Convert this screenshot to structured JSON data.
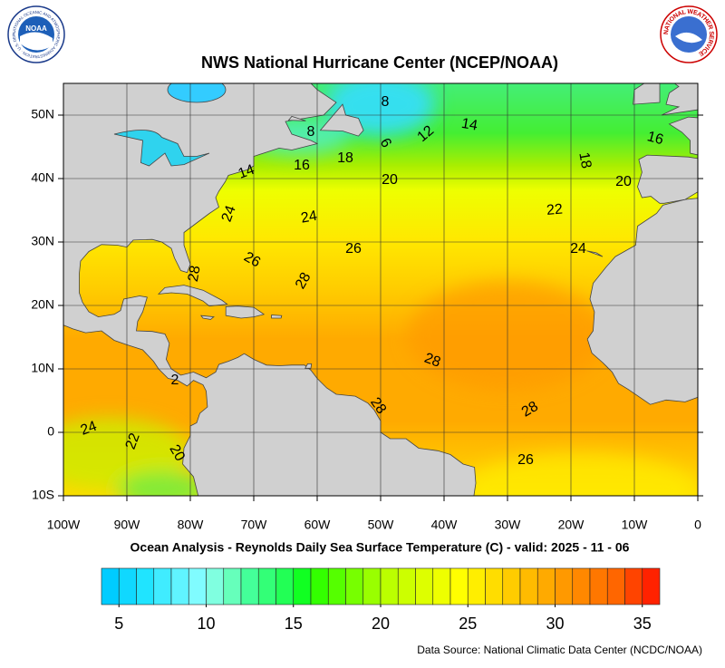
{
  "header": {
    "title": "NWS National Hurricane Center (NCEP/NOAA)"
  },
  "logos": {
    "noaa": "NOAA",
    "noaa_ring": "NATIONAL OCEANIC AND ATMOSPHERIC ADMINISTRATION · U.S. DEPARTMENT OF COMMERCE",
    "nws_ring": "NATIONAL WEATHER SERVICE"
  },
  "map": {
    "xlim": [
      -100,
      0
    ],
    "ylim": [
      -10,
      55
    ],
    "grid": true,
    "xticks": [
      {
        "value": -100,
        "label": "100W"
      },
      {
        "value": -90,
        "label": "90W"
      },
      {
        "value": -80,
        "label": "80W"
      },
      {
        "value": -70,
        "label": "70W"
      },
      {
        "value": -60,
        "label": "60W"
      },
      {
        "value": -50,
        "label": "50W"
      },
      {
        "value": -40,
        "label": "40W"
      },
      {
        "value": -30,
        "label": "30W"
      },
      {
        "value": -20,
        "label": "20W"
      },
      {
        "value": -10,
        "label": "10W"
      },
      0
    ],
    "yticks": [
      {
        "value": 50,
        "label": "50N"
      },
      {
        "value": 40,
        "label": "40N"
      },
      {
        "value": 30,
        "label": "30N"
      },
      {
        "value": 20,
        "label": "20N"
      },
      {
        "value": 10,
        "label": "10N"
      },
      0,
      {
        "value": -10,
        "label": "10S"
      }
    ],
    "contour_labels": [
      "8",
      "8",
      "6",
      "12",
      "14",
      "16",
      "14",
      "16",
      "18",
      "18",
      "20",
      "20",
      "24",
      "24",
      "22",
      "26",
      "24",
      "26",
      "28",
      "28",
      "28",
      "28",
      "28",
      "24",
      "22",
      "20",
      "26",
      "2"
    ]
  },
  "subtitle": "Ocean Analysis - Reynolds Daily Sea Surface Temperature (C) - valid: 2025 - 11 - 06",
  "colorbar": {
    "range": [
      4,
      36
    ],
    "colors": [
      "#00ccff",
      "#10d8ff",
      "#20e4ff",
      "#40ecff",
      "#60f4ff",
      "#80fcff",
      "#80ffe0",
      "#66ffbb",
      "#44ff99",
      "#33ff77",
      "#22ff55",
      "#11ff22",
      "#33ff00",
      "#55ff00",
      "#77ff00",
      "#99ff00",
      "#bbff00",
      "#ccff00",
      "#ddff00",
      "#eeff00",
      "#ffff00",
      "#ffee00",
      "#ffdd00",
      "#ffcc00",
      "#ffbb00",
      "#ffaa00",
      "#ff9900",
      "#ff8800",
      "#ff7700",
      "#ff6600",
      "#ff4400",
      "#ff2200"
    ],
    "ticks": [
      5,
      10,
      15,
      20,
      25,
      30,
      35
    ]
  },
  "source": "Data Source: National Climatic Data Center (NCDC/NOAA)"
}
